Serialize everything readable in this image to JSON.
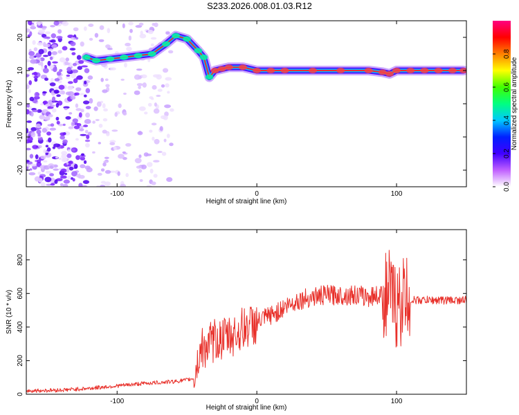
{
  "title": "S233.2026.008.01.03.R12",
  "colors": {
    "snr_line": "#e8302a",
    "ridge": "#ff2020",
    "colorbar": [
      "#ffffff",
      "#c060ff",
      "#4000ff",
      "#0020ff",
      "#00c8ff",
      "#00ff80",
      "#40ff00",
      "#ffff00",
      "#ff8000",
      "#ff0000",
      "#ff0080"
    ]
  },
  "chart_data": [
    {
      "type": "heatmap",
      "xlabel": "Height of straight line (km)",
      "ylabel": "Frequency (Hz)",
      "xlim": [
        -165,
        150
      ],
      "ylim": [
        -25,
        25
      ],
      "xticks": [
        -100,
        0,
        100
      ],
      "yticks": [
        -20,
        -10,
        0,
        10,
        20
      ],
      "colorbar": {
        "label": "Normalized spectral amplitude",
        "range": [
          0,
          1
        ],
        "ticks": [
          "0.0",
          "0.2",
          "0.4",
          "0.6",
          "0.8"
        ]
      },
      "ridge": {
        "x": [
          -122,
          -115,
          -105,
          -95,
          -85,
          -75,
          -65,
          -58,
          -50,
          -42,
          -38,
          -34,
          -30,
          -25,
          -20,
          -10,
          0,
          10,
          20,
          40,
          60,
          80,
          90,
          95,
          100,
          110,
          120,
          130,
          140,
          148
        ],
        "frequency": [
          14,
          13,
          13.5,
          14,
          14.5,
          15,
          18,
          20.5,
          19.5,
          16,
          14,
          8,
          10,
          10.5,
          11,
          11,
          10,
          10,
          10,
          10,
          10,
          10,
          9.5,
          9,
          10,
          10,
          10,
          10,
          10,
          10
        ]
      }
    },
    {
      "type": "line",
      "xlabel": "Height of straight line (km)",
      "ylabel": "SNR (10 * v/v)",
      "xlim": [
        -165,
        150
      ],
      "ylim": [
        0,
        980
      ],
      "xticks": [
        -100,
        0,
        100
      ],
      "yticks": [
        0,
        200,
        400,
        600,
        800
      ],
      "series": [
        {
          "x": [
            -165,
            -140,
            -120,
            -100,
            -80,
            -60,
            -50,
            -45,
            -40,
            -35,
            -30,
            -25,
            -20,
            -15,
            -10,
            -5,
            0,
            5,
            10,
            15,
            20,
            25,
            30,
            35,
            40,
            50,
            60,
            70,
            80,
            85,
            90,
            95,
            98,
            100,
            102,
            105,
            110,
            120,
            130,
            140,
            150
          ],
          "values": [
            20,
            25,
            35,
            50,
            65,
            75,
            85,
            95,
            270,
            290,
            320,
            330,
            340,
            360,
            390,
            410,
            420,
            450,
            470,
            490,
            520,
            540,
            560,
            570,
            580,
            590,
            590,
            590,
            580,
            590,
            590,
            600,
            560,
            520,
            520,
            580,
            560,
            560,
            560,
            560,
            560
          ]
        }
      ]
    }
  ]
}
